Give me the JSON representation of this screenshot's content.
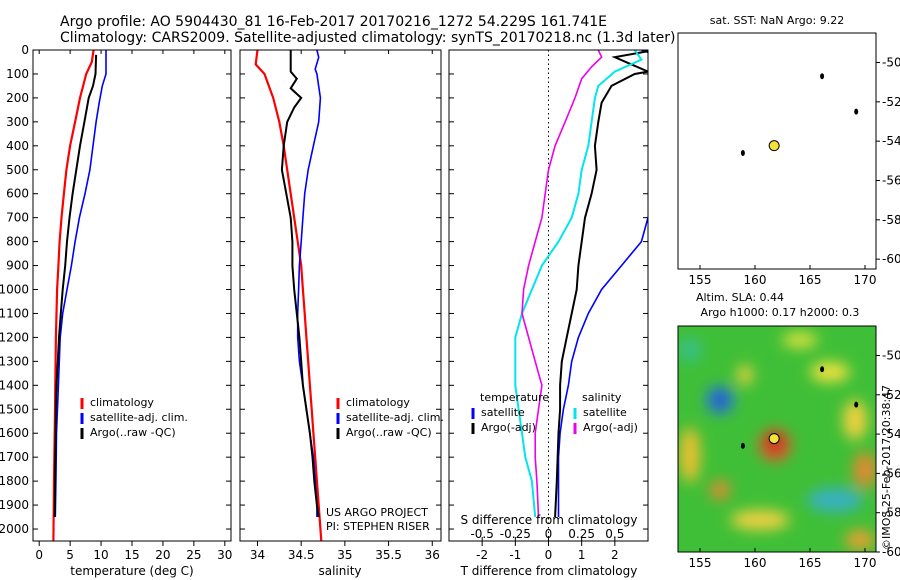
{
  "header": {
    "line1": "Argo profile: AO 5904430_81 16-Feb-2017 20170216_1272 54.229S 161.741E",
    "line2": "Climatology: CARS2009. Satellite-adjusted climatology: synTS_20170218.nc (1.3d later)"
  },
  "colors": {
    "climatology": "#ff0000",
    "satellite": "#0000ff",
    "argo": "#000000",
    "sat_salinity": "#00e5ee",
    "argo_salinity": "#ee00ee",
    "float_marker": "#f2e23a"
  },
  "credit": {
    "project": "US ARGO PROJECT",
    "pi": "PI: STEPHEN RISER",
    "imos": "©IMOS 25-Feb-2017 20:38:47"
  },
  "chart_data": [
    {
      "type": "line",
      "name": "temperature",
      "xlabel": "temperature (deg C)",
      "ylabel": "",
      "xlim": [
        -1,
        31
      ],
      "ylim": [
        2050,
        0
      ],
      "xticks": [
        0,
        5,
        10,
        15,
        20,
        25,
        30
      ],
      "yticks": [
        0,
        100,
        200,
        300,
        400,
        500,
        600,
        700,
        800,
        900,
        1000,
        1100,
        1200,
        1300,
        1400,
        1500,
        1600,
        1700,
        1800,
        1900,
        2000
      ],
      "legend": {
        "placement": "lower-center",
        "entries": [
          "climatology",
          "satellite-adj. clim.",
          "Argo(..raw -QC)"
        ]
      },
      "series": [
        {
          "name": "climatology",
          "color": "#ff0000",
          "points": [
            [
              8.8,
              0
            ],
            [
              8.5,
              50
            ],
            [
              7.6,
              100
            ],
            [
              6.6,
              200
            ],
            [
              5.8,
              300
            ],
            [
              5.0,
              400
            ],
            [
              4.4,
              500
            ],
            [
              4.0,
              600
            ],
            [
              3.6,
              700
            ],
            [
              3.3,
              800
            ],
            [
              3.1,
              900
            ],
            [
              2.9,
              1000
            ],
            [
              2.7,
              1200
            ],
            [
              2.6,
              1400
            ],
            [
              2.5,
              1600
            ],
            [
              2.4,
              1800
            ],
            [
              2.3,
              2050
            ]
          ]
        },
        {
          "name": "satellite-adj. clim.",
          "color": "#0000ff",
          "points": [
            [
              10.8,
              0
            ],
            [
              10.8,
              100
            ],
            [
              10.2,
              150
            ],
            [
              9.7,
              220
            ],
            [
              9.2,
              300
            ],
            [
              8.7,
              400
            ],
            [
              8.2,
              500
            ],
            [
              7.4,
              600
            ],
            [
              6.5,
              700
            ],
            [
              5.8,
              800
            ],
            [
              5.2,
              900
            ],
            [
              4.5,
              1000
            ],
            [
              3.8,
              1100
            ],
            [
              3.4,
              1200
            ],
            [
              3.1,
              1400
            ],
            [
              2.8,
              1600
            ],
            [
              2.7,
              1800
            ],
            [
              2.6,
              1950
            ]
          ]
        },
        {
          "name": "Argo(..raw -QC)",
          "color": "#000000",
          "points": [
            [
              9.2,
              20
            ],
            [
              9.1,
              100
            ],
            [
              8.7,
              150
            ],
            [
              8.0,
              200
            ],
            [
              7.3,
              300
            ],
            [
              6.6,
              400
            ],
            [
              6.0,
              500
            ],
            [
              5.4,
              600
            ],
            [
              4.9,
              700
            ],
            [
              4.5,
              800
            ],
            [
              4.2,
              900
            ],
            [
              3.8,
              1000
            ],
            [
              3.5,
              1100
            ],
            [
              3.2,
              1200
            ],
            [
              3.0,
              1300
            ],
            [
              2.8,
              1400
            ],
            [
              2.7,
              1500
            ],
            [
              2.6,
              1700
            ],
            [
              2.5,
              1950
            ]
          ]
        }
      ]
    },
    {
      "type": "line",
      "name": "salinity",
      "xlabel": "salinity",
      "ylabel": "",
      "xlim": [
        33.8,
        36.1
      ],
      "ylim": [
        2050,
        0
      ],
      "xticks": [
        34,
        34.5,
        35,
        35.5,
        36
      ],
      "xtick_labels": [
        "34",
        "34.5",
        "35",
        "35.5",
        "36"
      ],
      "legend": {
        "placement": "lower-right",
        "entries": [
          "climatology",
          "satellite-adj. clim.",
          "Argo(..raw -QC)"
        ]
      },
      "series": [
        {
          "name": "climatology",
          "color": "#ff0000",
          "points": [
            [
              34.0,
              0
            ],
            [
              33.98,
              60
            ],
            [
              34.08,
              100
            ],
            [
              34.18,
              200
            ],
            [
              34.25,
              300
            ],
            [
              34.3,
              400
            ],
            [
              34.34,
              500
            ],
            [
              34.38,
              600
            ],
            [
              34.42,
              700
            ],
            [
              34.46,
              800
            ],
            [
              34.5,
              900
            ],
            [
              34.52,
              1000
            ],
            [
              34.54,
              1100
            ],
            [
              34.56,
              1200
            ],
            [
              34.58,
              1300
            ],
            [
              34.6,
              1400
            ],
            [
              34.62,
              1500
            ],
            [
              34.64,
              1600
            ],
            [
              34.66,
              1700
            ],
            [
              34.68,
              1800
            ],
            [
              34.7,
              1900
            ],
            [
              34.73,
              2050
            ]
          ]
        },
        {
          "name": "satellite-adj. clim.",
          "color": "#0000ff",
          "points": [
            [
              34.68,
              0
            ],
            [
              34.7,
              30
            ],
            [
              34.66,
              80
            ],
            [
              34.68,
              100
            ],
            [
              34.72,
              200
            ],
            [
              34.7,
              300
            ],
            [
              34.64,
              400
            ],
            [
              34.58,
              500
            ],
            [
              34.54,
              600
            ],
            [
              34.52,
              700
            ],
            [
              34.5,
              800
            ],
            [
              34.48,
              900
            ],
            [
              34.47,
              1000
            ],
            [
              34.46,
              1100
            ],
            [
              34.46,
              1200
            ],
            [
              34.48,
              1300
            ],
            [
              34.52,
              1400
            ],
            [
              34.56,
              1500
            ],
            [
              34.6,
              1600
            ],
            [
              34.64,
              1700
            ],
            [
              34.66,
              1800
            ],
            [
              34.68,
              1900
            ],
            [
              34.68,
              1950
            ]
          ]
        },
        {
          "name": "Argo(..raw -QC)",
          "color": "#000000",
          "points": [
            [
              34.38,
              0
            ],
            [
              34.38,
              90
            ],
            [
              34.45,
              120
            ],
            [
              34.38,
              160
            ],
            [
              34.5,
              200
            ],
            [
              34.42,
              240
            ],
            [
              34.34,
              300
            ],
            [
              34.3,
              400
            ],
            [
              34.28,
              500
            ],
            [
              34.33,
              600
            ],
            [
              34.38,
              700
            ],
            [
              34.4,
              800
            ],
            [
              34.4,
              900
            ],
            [
              34.42,
              1000
            ],
            [
              34.45,
              1100
            ],
            [
              34.48,
              1200
            ],
            [
              34.5,
              1300
            ],
            [
              34.52,
              1400
            ],
            [
              34.56,
              1500
            ],
            [
              34.6,
              1600
            ],
            [
              34.63,
              1700
            ],
            [
              34.65,
              1800
            ],
            [
              34.68,
              1900
            ],
            [
              34.7,
              1950
            ]
          ]
        }
      ]
    },
    {
      "type": "line",
      "name": "difference",
      "xlabel_bottom": "T difference from climatology",
      "xlabel_top": "S difference from climatology",
      "xlim": [
        -3,
        3
      ],
      "ylim": [
        2050,
        0
      ],
      "xticks_bottom": [
        -2,
        -1,
        0,
        1,
        2
      ],
      "xticks_top": [
        -0.5,
        -0.25,
        0,
        0.25,
        0.5
      ],
      "xtick_labels_top": [
        "-0.5",
        "-0.25",
        "0",
        "0.25",
        "0.5"
      ],
      "zero_line": true,
      "legend": {
        "placement": "lower-center",
        "headers": [
          "temperature",
          "salinity"
        ],
        "entries": [
          "satellite",
          "Argo(-adj)",
          "satellite",
          "Argo(-adj)"
        ]
      },
      "series": [
        {
          "name": "satellite",
          "group": "temperature",
          "color": "#0000ff",
          "points": [
            [
              2.8,
              0
            ],
            [
              3.2,
              20
            ],
            [
              3.4,
              100
            ],
            [
              3.4,
              300
            ],
            [
              3.2,
              600
            ],
            [
              2.8,
              800
            ],
            [
              2.2,
              900
            ],
            [
              1.6,
              1000
            ],
            [
              1.2,
              1100
            ],
            [
              0.9,
              1200
            ],
            [
              0.7,
              1300
            ],
            [
              0.6,
              1400
            ],
            [
              0.45,
              1500
            ],
            [
              0.35,
              1600
            ],
            [
              0.3,
              1700
            ],
            [
              0.3,
              1800
            ],
            [
              0.3,
              1950
            ]
          ]
        },
        {
          "name": "Argo(-adj)",
          "group": "temperature",
          "color": "#000000",
          "points": [
            [
              3.2,
              0
            ],
            [
              2.0,
              30
            ],
            [
              2.5,
              60
            ],
            [
              3.0,
              90
            ],
            [
              2.6,
              100
            ],
            [
              1.9,
              150
            ],
            [
              1.6,
              220
            ],
            [
              1.5,
              300
            ],
            [
              1.4,
              400
            ],
            [
              1.45,
              500
            ],
            [
              1.3,
              600
            ],
            [
              1.1,
              700
            ],
            [
              1.0,
              800
            ],
            [
              0.9,
              900
            ],
            [
              0.85,
              1000
            ],
            [
              0.7,
              1100
            ],
            [
              0.55,
              1200
            ],
            [
              0.4,
              1300
            ],
            [
              0.35,
              1400
            ],
            [
              0.35,
              1500
            ],
            [
              0.3,
              1600
            ],
            [
              0.25,
              1800
            ],
            [
              0.2,
              1950
            ]
          ]
        },
        {
          "name": "satellite",
          "group": "salinity",
          "color": "#00e5ee",
          "points": [
            [
              2.6,
              0
            ],
            [
              2.8,
              40
            ],
            [
              2.0,
              90
            ],
            [
              1.5,
              150
            ],
            [
              1.4,
              200
            ],
            [
              1.3,
              300
            ],
            [
              1.2,
              400
            ],
            [
              1.0,
              500
            ],
            [
              0.9,
              600
            ],
            [
              0.7,
              700
            ],
            [
              0.3,
              800
            ],
            [
              -0.2,
              900
            ],
            [
              -0.5,
              1000
            ],
            [
              -0.8,
              1100
            ],
            [
              -1.0,
              1200
            ],
            [
              -1.0,
              1300
            ],
            [
              -1.0,
              1400
            ],
            [
              -0.9,
              1500
            ],
            [
              -0.8,
              1600
            ],
            [
              -0.7,
              1700
            ],
            [
              -0.5,
              1800
            ],
            [
              -0.4,
              1950
            ]
          ]
        },
        {
          "name": "Argo(-adj)",
          "group": "salinity",
          "color": "#ee00ee",
          "points": [
            [
              1.5,
              0
            ],
            [
              1.6,
              30
            ],
            [
              1.3,
              70
            ],
            [
              1.0,
              120
            ],
            [
              0.8,
              200
            ],
            [
              0.5,
              300
            ],
            [
              0.2,
              400
            ],
            [
              0.0,
              500
            ],
            [
              -0.1,
              600
            ],
            [
              -0.2,
              700
            ],
            [
              -0.4,
              800
            ],
            [
              -0.6,
              900
            ],
            [
              -0.75,
              1000
            ],
            [
              -0.8,
              1100
            ],
            [
              -0.6,
              1200
            ],
            [
              -0.4,
              1300
            ],
            [
              -0.2,
              1400
            ],
            [
              -0.3,
              1500
            ],
            [
              -0.4,
              1600
            ],
            [
              -0.4,
              1700
            ],
            [
              -0.35,
              1800
            ],
            [
              -0.3,
              1950
            ]
          ]
        }
      ]
    },
    {
      "type": "scatter",
      "name": "sst-map",
      "title": "sat. SST: NaN Argo: 9.22",
      "xlim": [
        153,
        171
      ],
      "ylim": [
        -60.5,
        -48.5
      ],
      "xticks": [
        155,
        160,
        165,
        170
      ],
      "yticks": [
        -50,
        -52,
        -54,
        -56,
        -58,
        -60
      ],
      "float_position": [
        161.741,
        -54.229
      ],
      "islands": [
        [
          166.1,
          -50.7
        ],
        [
          158.9,
          -54.6
        ],
        [
          169.2,
          -52.5
        ]
      ]
    },
    {
      "type": "heatmap",
      "name": "sla-map",
      "title": "Altim. SLA: 0.44",
      "subtitle": "Argo h1000: 0.17 h2000: 0.3",
      "xlim": [
        153,
        171
      ],
      "ylim": [
        -60,
        -48.5
      ],
      "xticks": [
        155,
        160,
        165,
        170
      ],
      "yticks": [
        -50,
        -52,
        -54,
        -56,
        -58,
        -60
      ],
      "float_position": [
        161.741,
        -54.229
      ],
      "islands": [
        [
          166.1,
          -50.7
        ],
        [
          158.9,
          -54.6
        ],
        [
          169.2,
          -52.5
        ]
      ]
    }
  ]
}
